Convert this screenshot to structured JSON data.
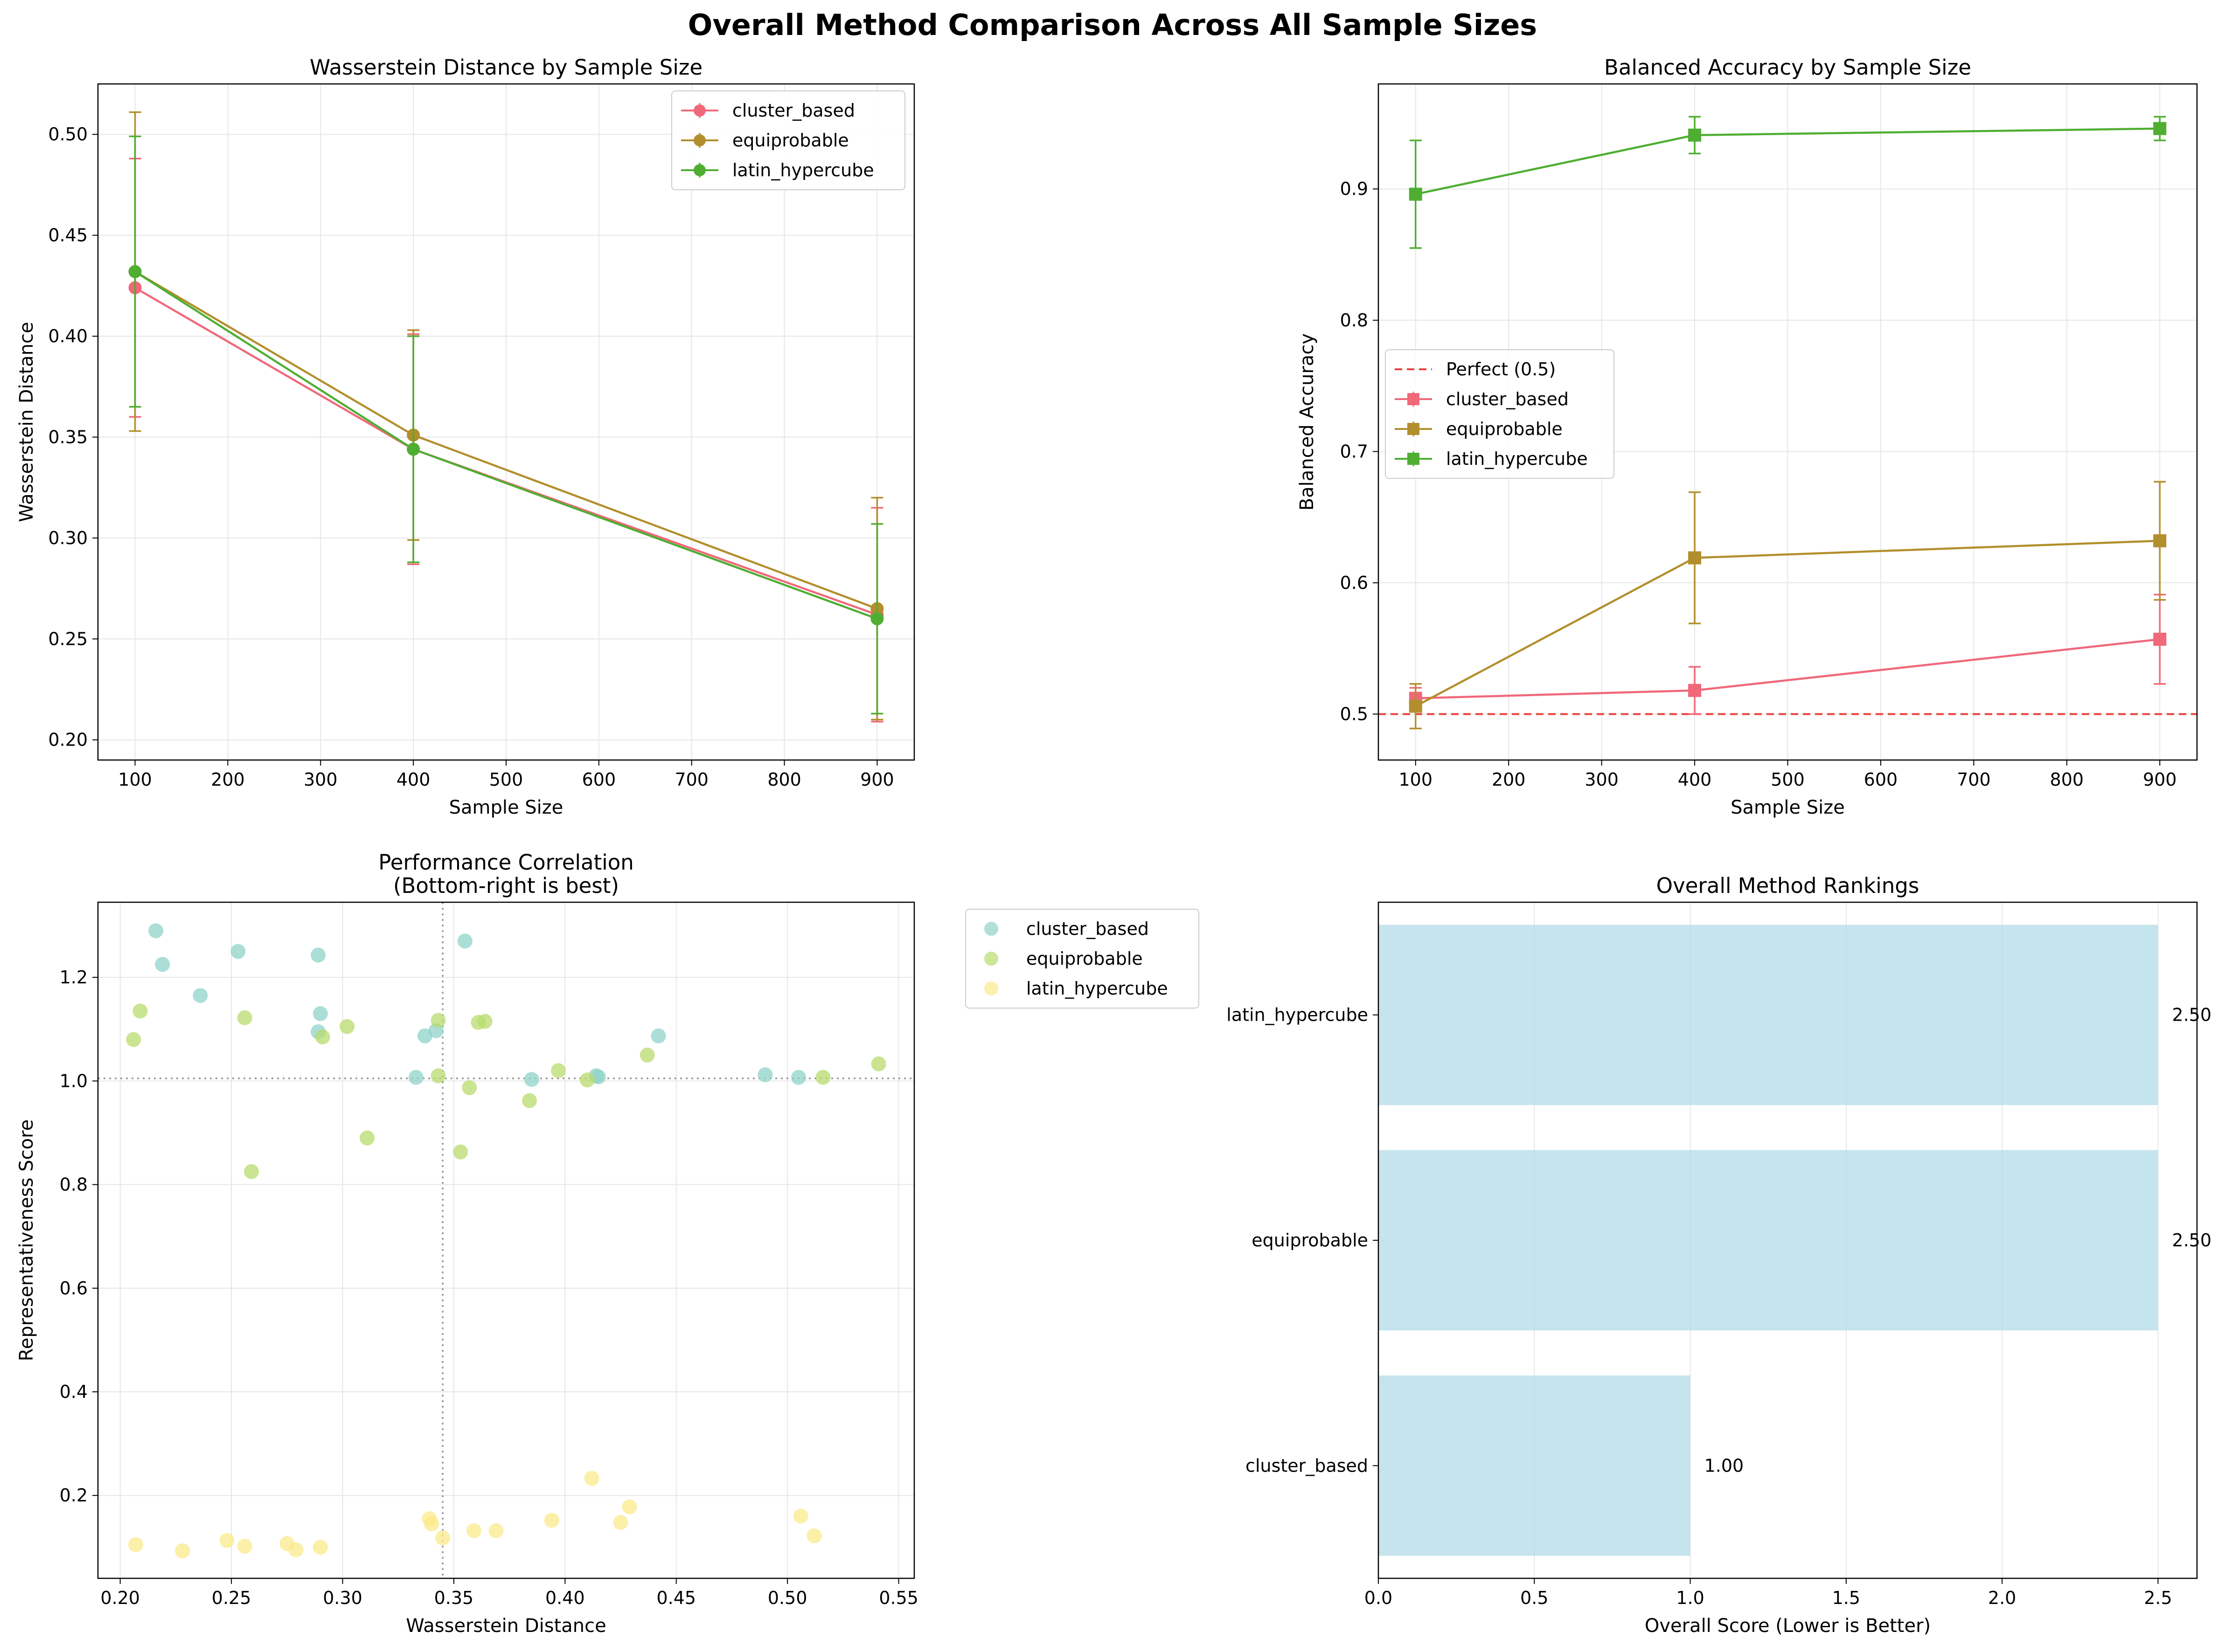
{
  "figure_title": "Overall Method Comparison Across All Sample Sizes",
  "colors": {
    "cluster_based": "#f0687a",
    "equiprobable": "#b28f2c",
    "latin_hypercube": "#4fae32",
    "scatter_cluster_based": "#8fd3c8",
    "scatter_equiprobable": "#b8db6c",
    "scatter_latin_hypercube": "#fbe98a",
    "bar": "#add8e6",
    "perfect_line": "#e8403a",
    "grid": "#e6e6e6"
  },
  "chart_data": [
    {
      "type": "line",
      "title": "Wasserstein Distance by Sample Size",
      "xlabel": "Sample Size",
      "ylabel": "Wasserstein Distance",
      "xlim": [
        60,
        940
      ],
      "ylim": [
        0.19,
        0.525
      ],
      "xticks": [
        100,
        200,
        300,
        400,
        500,
        600,
        700,
        800,
        900
      ],
      "yticks": [
        0.2,
        0.25,
        0.3,
        0.35,
        0.4,
        0.45,
        0.5
      ],
      "ytick_labels": [
        "0.20",
        "0.25",
        "0.30",
        "0.35",
        "0.40",
        "0.45",
        "0.50"
      ],
      "grid": true,
      "legend_position": "upper right",
      "marker": "circle",
      "x": [
        100,
        400,
        900
      ],
      "series": [
        {
          "name": "cluster_based",
          "values": [
            0.424,
            0.344,
            0.262
          ],
          "err": [
            0.064,
            0.057,
            0.053
          ]
        },
        {
          "name": "equiprobable",
          "values": [
            0.432,
            0.351,
            0.265
          ],
          "err": [
            0.079,
            0.052,
            0.055
          ]
        },
        {
          "name": "latin_hypercube",
          "values": [
            0.432,
            0.344,
            0.26
          ],
          "err": [
            0.067,
            0.056,
            0.047
          ]
        }
      ]
    },
    {
      "type": "line",
      "title": "Balanced Accuracy by Sample Size",
      "xlabel": "Sample Size",
      "ylabel": "Balanced Accuracy",
      "xlim": [
        60,
        940
      ],
      "ylim": [
        0.465,
        0.98
      ],
      "xticks": [
        100,
        200,
        300,
        400,
        500,
        600,
        700,
        800,
        900
      ],
      "yticks": [
        0.5,
        0.6,
        0.7,
        0.8,
        0.9
      ],
      "ytick_labels": [
        "0.5",
        "0.6",
        "0.7",
        "0.8",
        "0.9"
      ],
      "grid": true,
      "legend_position": "center left",
      "marker": "square",
      "reference_line": {
        "label": "Perfect (0.5)",
        "y": 0.5
      },
      "x": [
        100,
        400,
        900
      ],
      "series": [
        {
          "name": "cluster_based",
          "values": [
            0.512,
            0.518,
            0.557
          ],
          "err": [
            0.008,
            0.018,
            0.034
          ]
        },
        {
          "name": "equiprobable",
          "values": [
            0.506,
            0.619,
            0.632
          ],
          "err": [
            0.017,
            0.05,
            0.045
          ]
        },
        {
          "name": "latin_hypercube",
          "values": [
            0.896,
            0.941,
            0.946
          ],
          "err": [
            0.041,
            0.014,
            0.009
          ]
        }
      ]
    },
    {
      "type": "scatter",
      "title": "Performance Correlation",
      "subtitle": "(Bottom-right is best)",
      "xlabel": "Wasserstein Distance",
      "ylabel": "Representativeness Score",
      "xlim": [
        0.19,
        0.557
      ],
      "ylim": [
        0.04,
        1.345
      ],
      "xticks": [
        0.2,
        0.25,
        0.3,
        0.35,
        0.4,
        0.45,
        0.5,
        0.55
      ],
      "xtick_labels": [
        "0.20",
        "0.25",
        "0.30",
        "0.35",
        "0.40",
        "0.45",
        "0.50",
        "0.55"
      ],
      "yticks": [
        0.2,
        0.4,
        0.6,
        0.8,
        1.0,
        1.2
      ],
      "ytick_labels": [
        "0.2",
        "0.4",
        "0.6",
        "0.8",
        "1.0",
        "1.2"
      ],
      "grid": true,
      "legend_position": "outside upper right",
      "reference_x": 0.345,
      "reference_y": 1.005,
      "series": [
        {
          "name": "cluster_based",
          "points": [
            [
              0.216,
              1.29
            ],
            [
              0.219,
              1.225
            ],
            [
              0.236,
              1.165
            ],
            [
              0.253,
              1.25
            ],
            [
              0.289,
              1.243
            ],
            [
              0.29,
              1.13
            ],
            [
              0.289,
              1.095
            ],
            [
              0.333,
              1.007
            ],
            [
              0.337,
              1.087
            ],
            [
              0.342,
              1.097
            ],
            [
              0.355,
              1.27
            ],
            [
              0.385,
              1.003
            ],
            [
              0.414,
              1.01
            ],
            [
              0.415,
              1.008
            ],
            [
              0.442,
              1.087
            ],
            [
              0.49,
              1.012
            ],
            [
              0.505,
              1.007
            ]
          ]
        },
        {
          "name": "equiprobable",
          "points": [
            [
              0.206,
              1.08
            ],
            [
              0.209,
              1.135
            ],
            [
              0.256,
              1.122
            ],
            [
              0.259,
              0.825
            ],
            [
              0.291,
              1.085
            ],
            [
              0.302,
              1.105
            ],
            [
              0.311,
              0.89
            ],
            [
              0.343,
              1.117
            ],
            [
              0.343,
              1.01
            ],
            [
              0.353,
              0.863
            ],
            [
              0.357,
              0.987
            ],
            [
              0.361,
              1.113
            ],
            [
              0.364,
              1.115
            ],
            [
              0.384,
              0.962
            ],
            [
              0.397,
              1.02
            ],
            [
              0.41,
              1.002
            ],
            [
              0.437,
              1.05
            ],
            [
              0.516,
              1.007
            ],
            [
              0.541,
              1.033
            ]
          ]
        },
        {
          "name": "latin_hypercube",
          "points": [
            [
              0.207,
              0.105
            ],
            [
              0.228,
              0.093
            ],
            [
              0.248,
              0.113
            ],
            [
              0.256,
              0.102
            ],
            [
              0.275,
              0.107
            ],
            [
              0.279,
              0.095
            ],
            [
              0.29,
              0.1
            ],
            [
              0.339,
              0.155
            ],
            [
              0.34,
              0.145
            ],
            [
              0.345,
              0.118
            ],
            [
              0.359,
              0.132
            ],
            [
              0.369,
              0.132
            ],
            [
              0.394,
              0.152
            ],
            [
              0.412,
              0.233
            ],
            [
              0.425,
              0.148
            ],
            [
              0.429,
              0.178
            ],
            [
              0.506,
              0.16
            ],
            [
              0.512,
              0.122
            ]
          ]
        }
      ]
    },
    {
      "type": "bar",
      "orientation": "horizontal",
      "title": "Overall Method Rankings",
      "xlabel": "Overall Score (Lower is Better)",
      "xlim": [
        0,
        2.625
      ],
      "xticks": [
        0.0,
        0.5,
        1.0,
        1.5,
        2.0,
        2.5
      ],
      "xtick_labels": [
        "0.0",
        "0.5",
        "1.0",
        "1.5",
        "2.0",
        "2.5"
      ],
      "grid": true,
      "categories": [
        "cluster_based",
        "equiprobable",
        "latin_hypercube"
      ],
      "values": [
        1.0,
        2.5,
        2.5
      ],
      "value_labels": [
        "1.00",
        "2.50",
        "2.50"
      ]
    }
  ]
}
